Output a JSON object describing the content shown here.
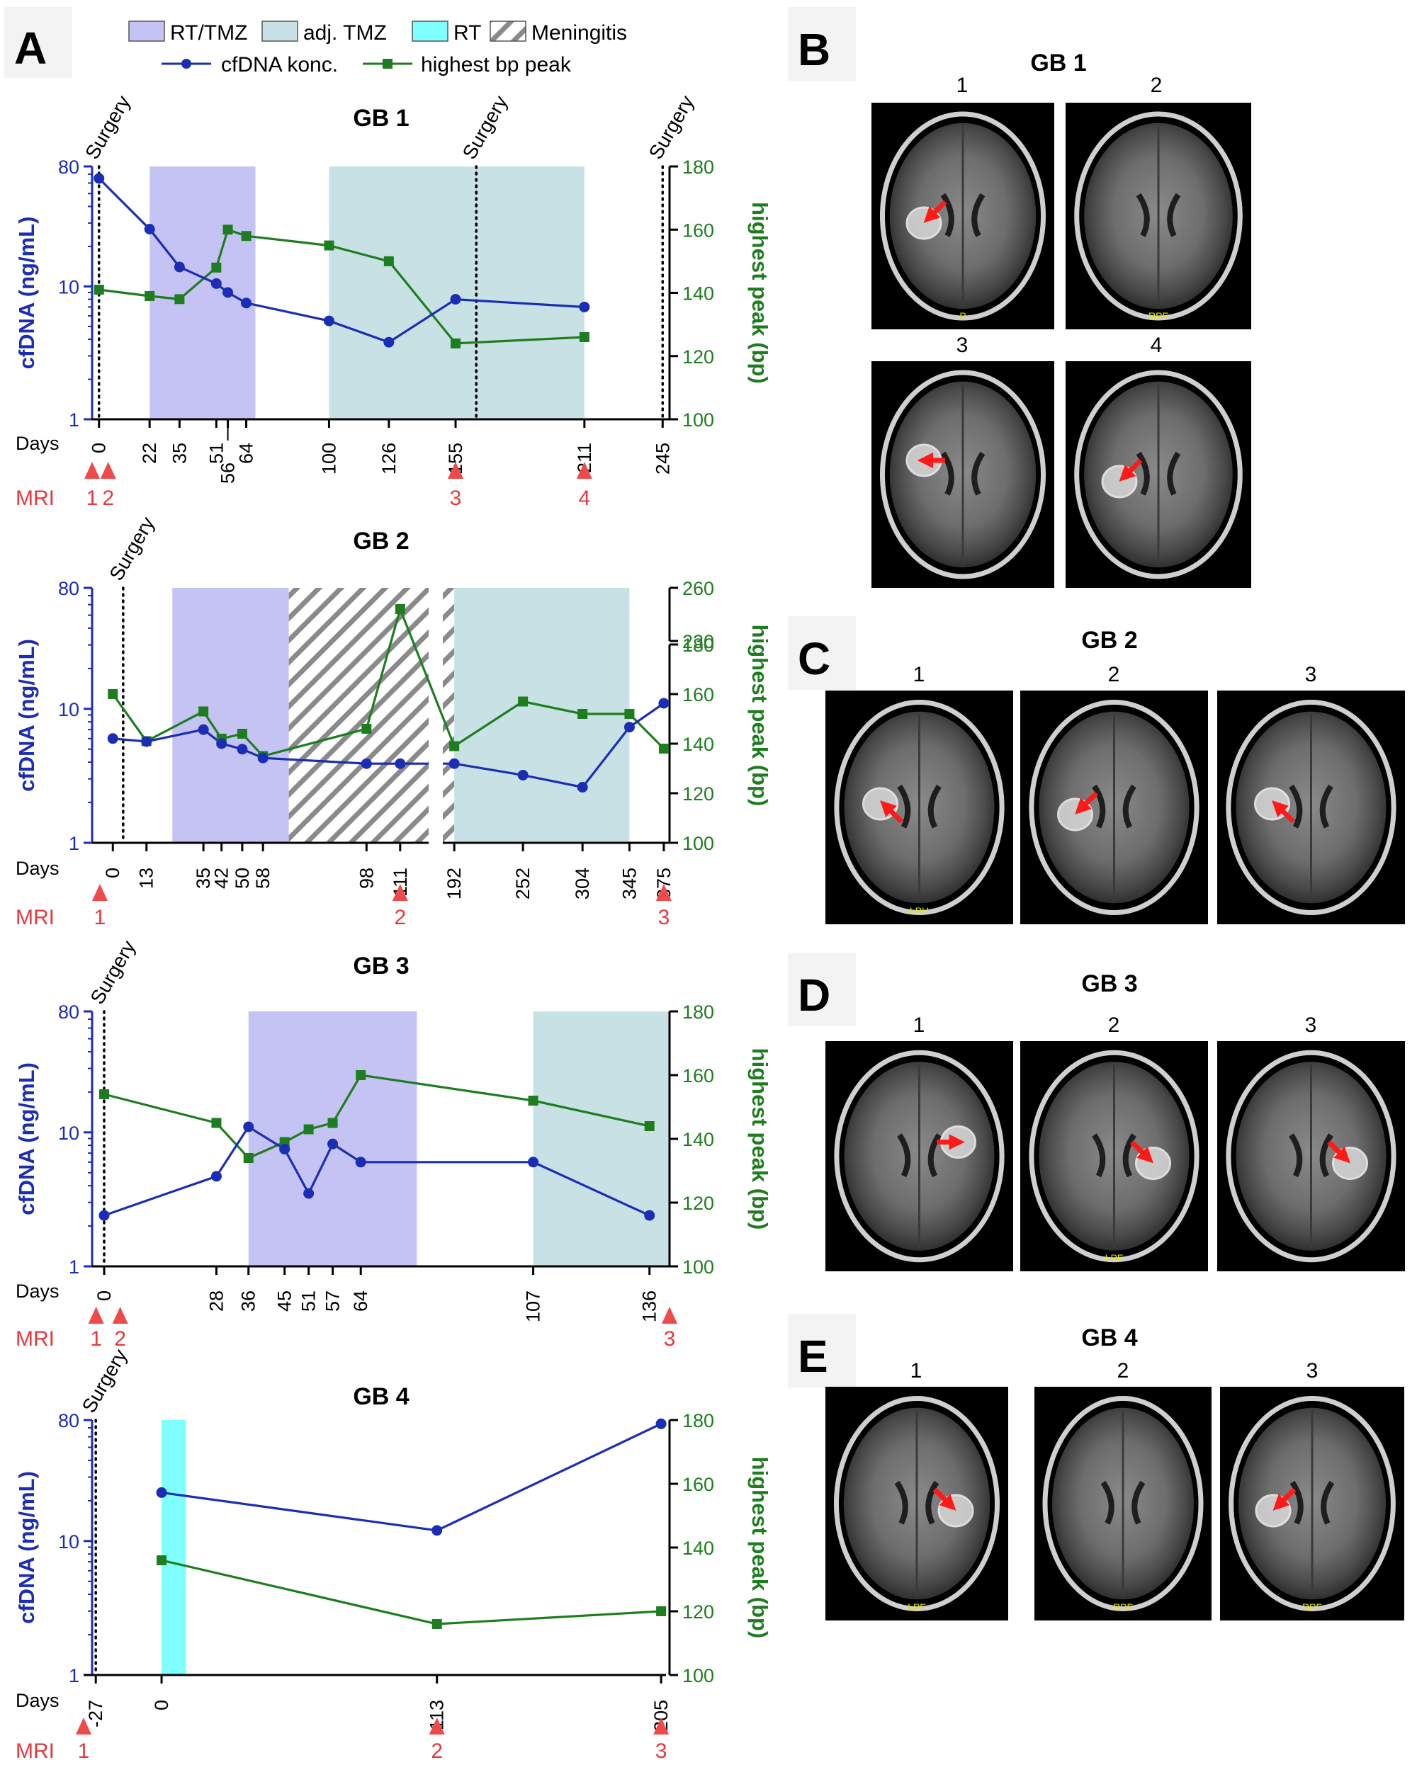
{
  "panel_letters": [
    "A",
    "B",
    "C",
    "D",
    "E"
  ],
  "legend": {
    "phases": [
      {
        "key": "rt_tmz",
        "label": "RT/TMZ",
        "color": "#c5c3f4"
      },
      {
        "key": "adj_tmz",
        "label": "adj. TMZ",
        "color": "#c7e1e4"
      },
      {
        "key": "rt",
        "label": "RT",
        "color": "#7fffff"
      },
      {
        "key": "meningitis",
        "label": "Meningitis",
        "pattern": "hatch"
      }
    ],
    "series": [
      {
        "key": "cfdna",
        "label": "cfDNA konc.",
        "color": "#1b2db5",
        "marker": "circle"
      },
      {
        "key": "peak",
        "label": "highest bp peak",
        "color": "#1e7d1e",
        "marker": "square"
      }
    ]
  },
  "common": {
    "ylabel_left": "cfDNA (ng/mL)",
    "ylabel_right": "highest peak (bp)",
    "days_label": "Days",
    "mri_label": "MRI",
    "surgery_label": "Surgery",
    "left_ticks": [
      "1",
      "10",
      "80"
    ]
  },
  "chart_data": [
    {
      "id": "gb1",
      "type": "line",
      "title": "GB 1",
      "y_left": {
        "scale": "log",
        "range": [
          1,
          80
        ],
        "ticks": [
          1,
          10,
          80
        ]
      },
      "y_right": {
        "scale": "linear",
        "range": [
          100,
          180
        ],
        "ticks": [
          100,
          120,
          140,
          160,
          180
        ]
      },
      "phases": [
        {
          "type": "rt_tmz",
          "start": 22,
          "end": 68
        },
        {
          "type": "adj_tmz",
          "start": 100,
          "end": 211
        }
      ],
      "surgery_days": [
        0,
        164,
        245
      ],
      "tick_days": [
        0,
        22,
        35,
        51,
        56,
        64,
        100,
        126,
        155,
        211,
        245
      ],
      "tick_labels": [
        "0",
        "22",
        "35",
        "51",
        "56",
        "64",
        "100",
        "126",
        "155",
        "211",
        "245"
      ],
      "cfdna": {
        "days": [
          0,
          22,
          35,
          51,
          56,
          64,
          100,
          126,
          155,
          211
        ],
        "values": [
          65,
          27,
          14,
          10.5,
          9,
          7.5,
          5.5,
          3.8,
          8,
          7
        ]
      },
      "peak": {
        "days": [
          0,
          22,
          35,
          51,
          56,
          64,
          100,
          126,
          155,
          211
        ],
        "values": [
          141,
          139,
          138,
          148,
          160,
          158,
          155,
          150,
          124,
          126
        ]
      },
      "mri": {
        "days": [
          -4,
          4,
          155,
          211
        ],
        "labels": [
          "1",
          "2",
          "3",
          "4"
        ]
      }
    },
    {
      "id": "gb2",
      "type": "line",
      "title": "GB 2",
      "y_left": {
        "scale": "log",
        "range": [
          1,
          80
        ],
        "ticks": [
          1,
          10,
          80
        ]
      },
      "y_right": {
        "scale": "broken",
        "range": [
          100,
          260
        ],
        "ticks": [
          100,
          120,
          140,
          160,
          180,
          230,
          260
        ]
      },
      "phases": [
        {
          "type": "rt_tmz",
          "start": 23,
          "end": 68
        },
        {
          "type": "meningitis",
          "start": 68,
          "end": 122
        },
        {
          "type": "meningitis",
          "start": 182,
          "end": 192
        },
        {
          "type": "adj_tmz",
          "start": 192,
          "end": 345
        }
      ],
      "axis_break": {
        "after_day": 122,
        "before_day": 182
      },
      "surgery_days": [
        4
      ],
      "tick_days": [
        0,
        13,
        35,
        42,
        50,
        58,
        98,
        111,
        192,
        252,
        304,
        345,
        375
      ],
      "tick_labels": [
        "0",
        "13",
        "35",
        "42",
        "50",
        "58",
        "98",
        "111",
        "192",
        "252",
        "304",
        "345",
        "375"
      ],
      "cfdna": {
        "days": [
          0,
          13,
          35,
          42,
          50,
          58,
          98,
          111,
          192,
          252,
          304,
          345,
          375
        ],
        "values": [
          6,
          5.7,
          7,
          5.5,
          5,
          4.3,
          3.9,
          3.9,
          3.9,
          3.2,
          2.6,
          7.3,
          11
        ]
      },
      "peak": {
        "days": [
          0,
          13,
          35,
          42,
          50,
          58,
          98,
          111,
          192,
          252,
          304,
          345,
          375
        ],
        "values": [
          160,
          141,
          153,
          142,
          144,
          135,
          146,
          248,
          139,
          157,
          152,
          152,
          138
        ]
      },
      "mri": {
        "days": [
          -5,
          111,
          375
        ],
        "labels": [
          "1",
          "2",
          "3"
        ]
      }
    },
    {
      "id": "gb3",
      "type": "line",
      "title": "GB 3",
      "y_left": {
        "scale": "log",
        "range": [
          1,
          80
        ],
        "ticks": [
          1,
          10,
          80
        ]
      },
      "y_right": {
        "scale": "linear",
        "range": [
          100,
          180
        ],
        "ticks": [
          100,
          120,
          140,
          160,
          180
        ]
      },
      "phases": [
        {
          "type": "rt_tmz",
          "start": 36,
          "end": 78
        },
        {
          "type": "adj_tmz",
          "start": 107,
          "end": 141
        }
      ],
      "surgery_days": [
        0
      ],
      "tick_days": [
        0,
        28,
        36,
        45,
        51,
        57,
        64,
        107,
        136
      ],
      "tick_labels": [
        "0",
        "28",
        "36",
        "45",
        "51",
        "57",
        "64",
        "107",
        "136"
      ],
      "cfdna": {
        "days": [
          0,
          28,
          36,
          45,
          51,
          57,
          64,
          107,
          136
        ],
        "values": [
          2.4,
          4.7,
          11,
          7.5,
          3.5,
          8.2,
          6,
          6,
          2.4
        ]
      },
      "peak": {
        "days": [
          0,
          28,
          36,
          45,
          51,
          57,
          64,
          107,
          136
        ],
        "values": [
          154,
          145,
          134,
          139,
          143,
          145,
          160,
          152,
          144
        ]
      },
      "mri": {
        "days": [
          -2,
          4,
          141
        ],
        "labels": [
          "1",
          "2",
          "3"
        ]
      }
    },
    {
      "id": "gb4",
      "type": "line",
      "title": "GB 4",
      "y_left": {
        "scale": "log",
        "range": [
          1,
          80
        ],
        "ticks": [
          1,
          10,
          80
        ]
      },
      "y_right": {
        "scale": "linear",
        "range": [
          100,
          180
        ],
        "ticks": [
          100,
          120,
          140,
          160,
          180
        ]
      },
      "phases": [
        {
          "type": "rt",
          "start": 0,
          "end": 10
        }
      ],
      "surgery_days": [
        -27
      ],
      "tick_days": [
        -27,
        0,
        113,
        205
      ],
      "tick_labels": [
        "-27",
        "0",
        "113",
        "205"
      ],
      "cfdna": {
        "days": [
          0,
          113,
          205
        ],
        "values": [
          23,
          12,
          75
        ]
      },
      "peak": {
        "days": [
          0,
          113,
          205
        ],
        "values": [
          136,
          116,
          120
        ]
      },
      "mri": {
        "days": [
          -32,
          113,
          205
        ],
        "labels": [
          "1",
          "2",
          "3"
        ]
      }
    }
  ],
  "mri_panels": [
    {
      "panel": "B",
      "title": "GB 1",
      "images": [
        {
          "label": "1",
          "arrow_dir": "down-left",
          "marker_text": "P"
        },
        {
          "label": "2",
          "arrow_dir": "",
          "marker_text": "RPF"
        },
        {
          "label": "3",
          "arrow_dir": "left",
          "marker_text": ""
        },
        {
          "label": "4",
          "arrow_dir": "down-left",
          "marker_text": ""
        }
      ]
    },
    {
      "panel": "C",
      "title": "GB 2",
      "images": [
        {
          "label": "1",
          "arrow_dir": "up-left",
          "marker_text": "LPH"
        },
        {
          "label": "2",
          "arrow_dir": "down-left",
          "marker_text": ""
        },
        {
          "label": "3",
          "arrow_dir": "up-left",
          "marker_text": ""
        }
      ]
    },
    {
      "panel": "D",
      "title": "GB 3",
      "images": [
        {
          "label": "1",
          "arrow_dir": "right",
          "marker_text": ""
        },
        {
          "label": "2",
          "arrow_dir": "down-right",
          "marker_text": "LPF"
        },
        {
          "label": "3",
          "arrow_dir": "down-right",
          "marker_text": ""
        }
      ]
    },
    {
      "panel": "E",
      "title": "GB 4",
      "images": [
        {
          "label": "1",
          "arrow_dir": "down-right",
          "marker_text": "LPF"
        },
        {
          "label": "2",
          "arrow_dir": "",
          "marker_text": "RPF"
        },
        {
          "label": "3",
          "arrow_dir": "down-left",
          "marker_text": "RPF"
        }
      ]
    }
  ]
}
